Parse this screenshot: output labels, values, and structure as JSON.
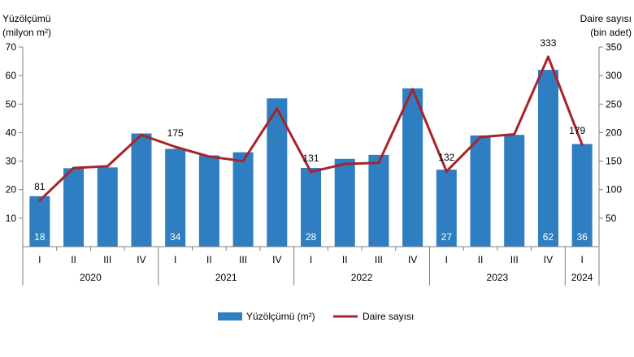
{
  "chart_data": {
    "type": "bar-line",
    "left_axis_title": [
      "Yüzölçümü",
      "(milyon m²)"
    ],
    "right_axis_title": [
      "Daire sayısı",
      "(bin adet)"
    ],
    "left_ylim": [
      0,
      70
    ],
    "left_ticks": [
      10,
      20,
      30,
      40,
      50,
      60,
      70
    ],
    "right_ylim": [
      0,
      350
    ],
    "right_ticks": [
      50,
      100,
      150,
      200,
      250,
      300,
      350
    ],
    "quarters": [
      "I",
      "II",
      "III",
      "IV",
      "I",
      "II",
      "III",
      "IV",
      "I",
      "II",
      "III",
      "IV",
      "I",
      "II",
      "III",
      "IV",
      "I"
    ],
    "years": [
      {
        "label": "2020",
        "count": 4
      },
      {
        "label": "2021",
        "count": 4
      },
      {
        "label": "2022",
        "count": 4
      },
      {
        "label": "2023",
        "count": 4
      },
      {
        "label": "2024",
        "count": 1
      }
    ],
    "series": [
      {
        "name": "Yüzölçümü (m²)",
        "type": "bar",
        "color": "#2e7ec1",
        "values": [
          17.7,
          27.5,
          27.8,
          39.7,
          34.3,
          32.0,
          33.1,
          52.0,
          27.6,
          30.8,
          32.2,
          55.5,
          27.0,
          39.0,
          39.2,
          62.0,
          36.0
        ],
        "labels": [
          "18",
          "",
          "",
          "",
          "34",
          "",
          "",
          "",
          "28",
          "",
          "",
          "",
          "27",
          "",
          "",
          "62",
          "36"
        ]
      },
      {
        "name": "Daire sayısı",
        "type": "line",
        "color": "#a8232a",
        "values": [
          81,
          138,
          141,
          196,
          175,
          158,
          150,
          242,
          131,
          145,
          147,
          276,
          132,
          192,
          197,
          333,
          179
        ],
        "labels": [
          "81",
          "",
          "",
          "",
          "175",
          "",
          "",
          "",
          "131",
          "",
          "",
          "",
          "132",
          "",
          "",
          "333",
          "179"
        ]
      }
    ],
    "legend_position": "bottom"
  }
}
